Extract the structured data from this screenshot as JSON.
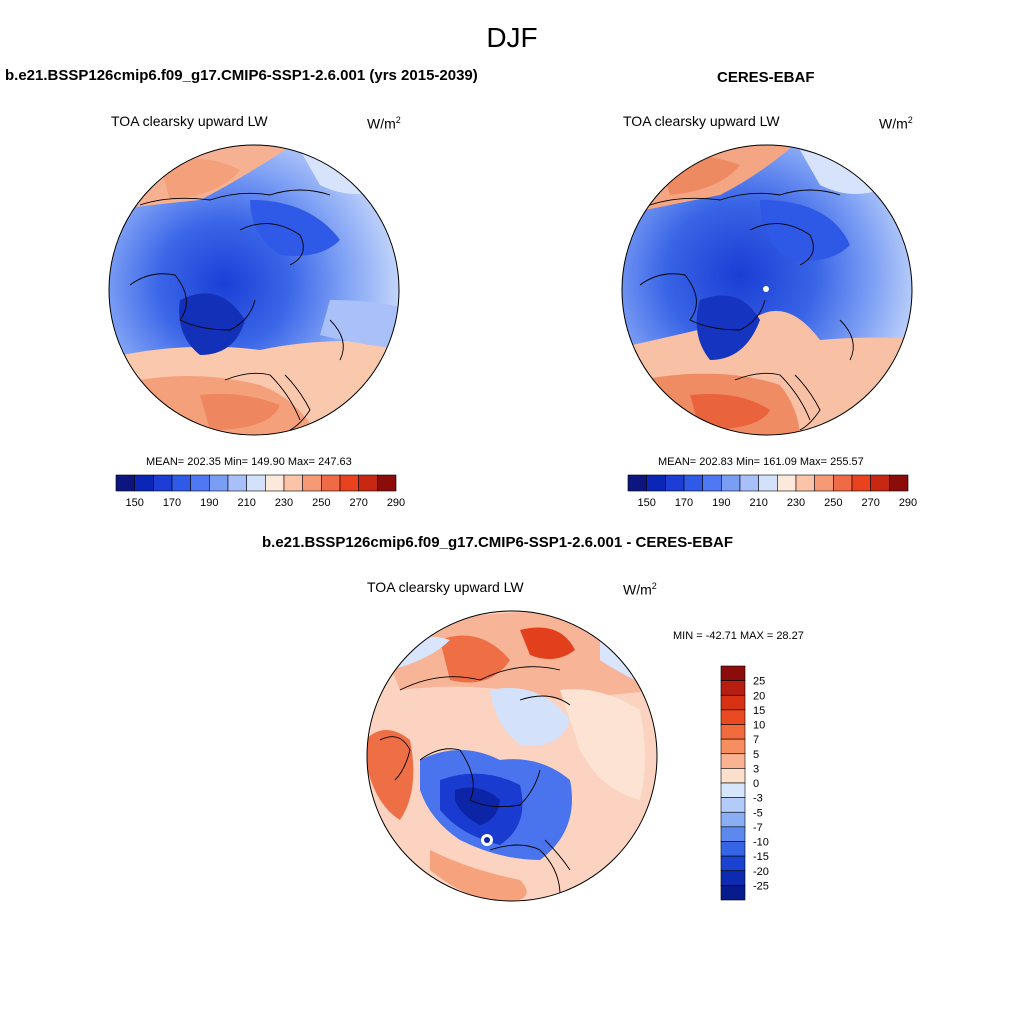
{
  "title": "DJF",
  "panels": [
    {
      "id": "model",
      "title": "b.e21.BSSP126cmip6.f09_g17.CMIP6-SSP1-2.6.001 (yrs 2015-2039)",
      "variable": "TOA clearsky upward LW",
      "units_base": "W/m",
      "units_exp": "2",
      "stats": "MEAN= 202.35  Min= 149.90  Max= 247.63",
      "colorbar": {
        "colors": [
          "#0d1580",
          "#0a26b6",
          "#1c3ed6",
          "#2f5ae8",
          "#4f79f2",
          "#7a9df6",
          "#a8c0f9",
          "#d3e1fb",
          "#fde8dc",
          "#fbc4a8",
          "#f69a76",
          "#f06a46",
          "#e8421f",
          "#c82812",
          "#8c0b0b"
        ],
        "labels": [
          "150",
          "170",
          "190",
          "210",
          "230",
          "250",
          "270",
          "290"
        ]
      }
    },
    {
      "id": "obs",
      "title": "CERES-EBAF",
      "variable": "TOA clearsky upward LW",
      "units_base": "W/m",
      "units_exp": "2",
      "stats": "MEAN= 202.83  Min= 161.09  Max= 255.57",
      "colorbar": {
        "colors": [
          "#0d1580",
          "#0a26b6",
          "#1c3ed6",
          "#2f5ae8",
          "#4f79f2",
          "#7a9df6",
          "#a8c0f9",
          "#d3e1fb",
          "#fde8dc",
          "#fbc4a8",
          "#f69a76",
          "#f06a46",
          "#e8421f",
          "#c82812",
          "#8c0b0b"
        ],
        "labels": [
          "150",
          "170",
          "190",
          "210",
          "230",
          "250",
          "270",
          "290"
        ]
      }
    },
    {
      "id": "diff",
      "title": "b.e21.BSSP126cmip6.f09_g17.CMIP6-SSP1-2.6.001 - CERES-EBAF",
      "variable": "TOA clearsky upward LW",
      "units_base": "W/m",
      "units_exp": "2",
      "stats": "MIN = -42.71 MAX =  28.27",
      "colorbar": {
        "colors": [
          "#8c0b0b",
          "#b51e10",
          "#d83214",
          "#ea4a22",
          "#f26b3c",
          "#f68e62",
          "#f9b292",
          "#fde0cc",
          "#d7e5fb",
          "#b3cbf8",
          "#8aaef4",
          "#5d89ee",
          "#3564e4",
          "#1a43d2",
          "#0c2bb0",
          "#071b8c"
        ],
        "labels": [
          "25",
          "20",
          "15",
          "10",
          "7",
          "5",
          "3",
          "0",
          "-3",
          "-5",
          "-7",
          "-10",
          "-15",
          "-20",
          "-25"
        ]
      }
    }
  ]
}
